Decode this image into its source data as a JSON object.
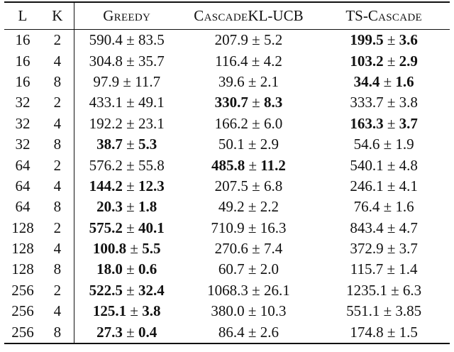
{
  "table": {
    "columns": [
      "L",
      "K",
      "Greedy",
      "CascadeKL-UCB",
      "TS-Cascade"
    ],
    "rows": [
      {
        "L": "16",
        "K": "2",
        "greedy": {
          "mean": "590.4",
          "std": "83.5",
          "bold": false
        },
        "ckl": {
          "mean": "207.9",
          "std": "5.2",
          "bold": false
        },
        "ts": {
          "mean": "199.5",
          "std": "3.6",
          "bold": true
        }
      },
      {
        "L": "16",
        "K": "4",
        "greedy": {
          "mean": "304.8",
          "std": "35.7",
          "bold": false
        },
        "ckl": {
          "mean": "116.4",
          "std": "4.2",
          "bold": false
        },
        "ts": {
          "mean": "103.2",
          "std": "2.9",
          "bold": true
        }
      },
      {
        "L": "16",
        "K": "8",
        "greedy": {
          "mean": "97.9",
          "std": "11.7",
          "bold": false
        },
        "ckl": {
          "mean": "39.6",
          "std": "2.1",
          "bold": false
        },
        "ts": {
          "mean": "34.4",
          "std": "1.6",
          "bold": true
        }
      },
      {
        "L": "32",
        "K": "2",
        "greedy": {
          "mean": "433.1",
          "std": "49.1",
          "bold": false
        },
        "ckl": {
          "mean": "330.7",
          "std": "8.3",
          "bold": true
        },
        "ts": {
          "mean": "333.7",
          "std": "3.8",
          "bold": false
        }
      },
      {
        "L": "32",
        "K": "4",
        "greedy": {
          "mean": "192.2",
          "std": "23.1",
          "bold": false
        },
        "ckl": {
          "mean": "166.2",
          "std": "6.0",
          "bold": false
        },
        "ts": {
          "mean": "163.3",
          "std": "3.7",
          "bold": true
        }
      },
      {
        "L": "32",
        "K": "8",
        "greedy": {
          "mean": "38.7",
          "std": "5.3",
          "bold": true
        },
        "ckl": {
          "mean": "50.1",
          "std": "2.9",
          "bold": false
        },
        "ts": {
          "mean": "54.6",
          "std": "1.9",
          "bold": false
        }
      },
      {
        "L": "64",
        "K": "2",
        "greedy": {
          "mean": "576.2",
          "std": "55.8",
          "bold": false
        },
        "ckl": {
          "mean": "485.8",
          "std": "11.2",
          "bold": true
        },
        "ts": {
          "mean": "540.1",
          "std": "4.8",
          "bold": false
        }
      },
      {
        "L": "64",
        "K": "4",
        "greedy": {
          "mean": "144.2",
          "std": "12.3",
          "bold": true
        },
        "ckl": {
          "mean": "207.5",
          "std": "6.8",
          "bold": false
        },
        "ts": {
          "mean": "246.1",
          "std": "4.1",
          "bold": false
        }
      },
      {
        "L": "64",
        "K": "8",
        "greedy": {
          "mean": "20.3",
          "std": "1.8",
          "bold": true
        },
        "ckl": {
          "mean": "49.2",
          "std": "2.2",
          "bold": false
        },
        "ts": {
          "mean": "76.4",
          "std": "1.6",
          "bold": false
        }
      },
      {
        "L": "128",
        "K": "2",
        "greedy": {
          "mean": "575.2",
          "std": "40.1",
          "bold": true
        },
        "ckl": {
          "mean": "710.9",
          "std": "16.3",
          "bold": false
        },
        "ts": {
          "mean": "843.4",
          "std": "4.7",
          "bold": false
        }
      },
      {
        "L": "128",
        "K": "4",
        "greedy": {
          "mean": "100.8",
          "std": "5.5",
          "bold": true
        },
        "ckl": {
          "mean": "270.6",
          "std": "7.4",
          "bold": false
        },
        "ts": {
          "mean": "372.9",
          "std": "3.7",
          "bold": false
        }
      },
      {
        "L": "128",
        "K": "8",
        "greedy": {
          "mean": "18.0",
          "std": "0.6",
          "bold": true
        },
        "ckl": {
          "mean": "60.7",
          "std": "2.0",
          "bold": false
        },
        "ts": {
          "mean": "115.7",
          "std": "1.4",
          "bold": false
        }
      },
      {
        "L": "256",
        "K": "2",
        "greedy": {
          "mean": "522.5",
          "std": "32.4",
          "bold": true
        },
        "ckl": {
          "mean": "1068.3",
          "std": "26.1",
          "bold": false
        },
        "ts": {
          "mean": "1235.1",
          "std": "6.3",
          "bold": false
        }
      },
      {
        "L": "256",
        "K": "4",
        "greedy": {
          "mean": "125.1",
          "std": "3.8",
          "bold": true
        },
        "ckl": {
          "mean": "380.0",
          "std": "10.3",
          "bold": false
        },
        "ts": {
          "mean": "551.1",
          "std": "3.85",
          "bold": false
        }
      },
      {
        "L": "256",
        "K": "8",
        "greedy": {
          "mean": "27.3",
          "std": "0.4",
          "bold": true
        },
        "ckl": {
          "mean": "86.4",
          "std": "2.6",
          "bold": false
        },
        "ts": {
          "mean": "174.8",
          "std": "1.5",
          "bold": false
        }
      }
    ]
  }
}
